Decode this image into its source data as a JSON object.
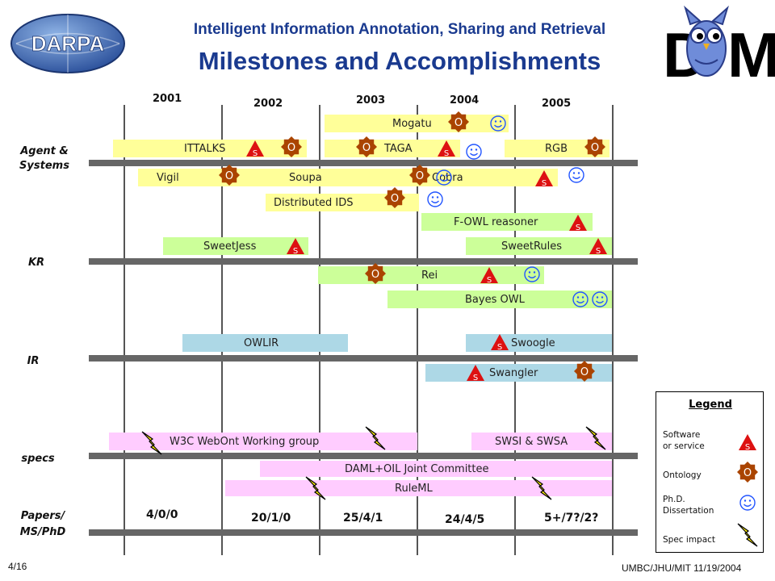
{
  "header": {
    "subtitle": "Intelligent Information Annotation, Sharing and Retrieval",
    "title": "Milestones and Accomplishments",
    "darpa_logo_text": "DARPA",
    "daml_logo_text": "DAML"
  },
  "years": [
    "2001",
    "2002",
    "2003",
    "2004",
    "2005"
  ],
  "categories": {
    "agents": "Agent &\nSystems",
    "kr": "KR",
    "ir": "IR",
    "specs": "specs",
    "papers": "Papers/\nMS/PhD"
  },
  "bars": {
    "mogatu": "Mogatu",
    "ittalks": "ITTALKS",
    "taga": "TAGA",
    "rgb": "RGB",
    "vigil": "Vigil",
    "soupa": "Soupa",
    "cobra": "Cobra",
    "distributed_ids": "Distributed IDS",
    "fowl": "F-OWL reasoner",
    "sweetjess": "SweetJess",
    "sweetrules": "SweetRules",
    "rei": "Rei",
    "bayes_owl": "Bayes OWL",
    "owlir": "OWLIR",
    "swoogle": "Swoogle",
    "swangler": "Swangler",
    "w3c": "W3C WebOnt Working group",
    "swsi": "SWSI & SWSA",
    "daml_oil": "DAML+OIL Joint Committee",
    "ruleml": "RuleML"
  },
  "paper_counts": [
    "4/0/0",
    "20/1/0",
    "25/4/1",
    "24/4/5",
    "5+/7?/2?"
  ],
  "marker_letters": {
    "software": "S",
    "ontology": "O"
  },
  "legend": {
    "title": "Legend",
    "software": "Software\nor service",
    "ontology": "Ontology",
    "phd": "Ph.D.\nDissertation",
    "spec": "Spec impact"
  },
  "footer": {
    "page": "4/16",
    "credit": "UMBC/JHU/MIT 11/19/2004"
  },
  "colors": {
    "title_blue": "#1a3a8f",
    "software_red": "#dd1111",
    "ontology_brown": "#aa4400",
    "phd_smiley": "#2255ff",
    "spec_bolt": "#ffee00"
  }
}
